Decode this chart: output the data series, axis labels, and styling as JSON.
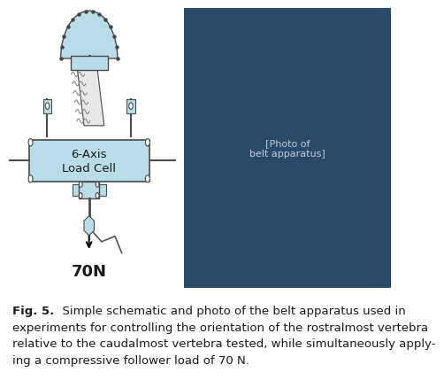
{
  "figure_caption": "Fig. 5.  Simple schematic and photo of the belt apparatus used in experiments for controlling the orientation of the rostralmost vertebra relative to the caudalmost vertebra tested, while simultaneously applying a compressive follower load of 70 N.",
  "caption_bold_part": "Fig. 5.",
  "caption_regular_part": "  Simple schematic and photo of the belt apparatus used in experiments for controlling the orientation of the rostralmost vertebra relative to the caudalmost vertebra tested, while simultaneously applying a compressive follower load of 70 N.",
  "load_cell_label": "6-Axis\nLoad Cell",
  "force_label": "70N",
  "bg_color": "#ffffff",
  "schematic_bg": "#ffffff",
  "load_cell_color": "#b8dde8",
  "dome_color": "#b8dde8",
  "small_piece_color": "#b8dde8",
  "border_color": "#4a4a4a",
  "text_color": "#1a1a1a",
  "caption_fontsize": 9.5,
  "label_fontsize": 10
}
